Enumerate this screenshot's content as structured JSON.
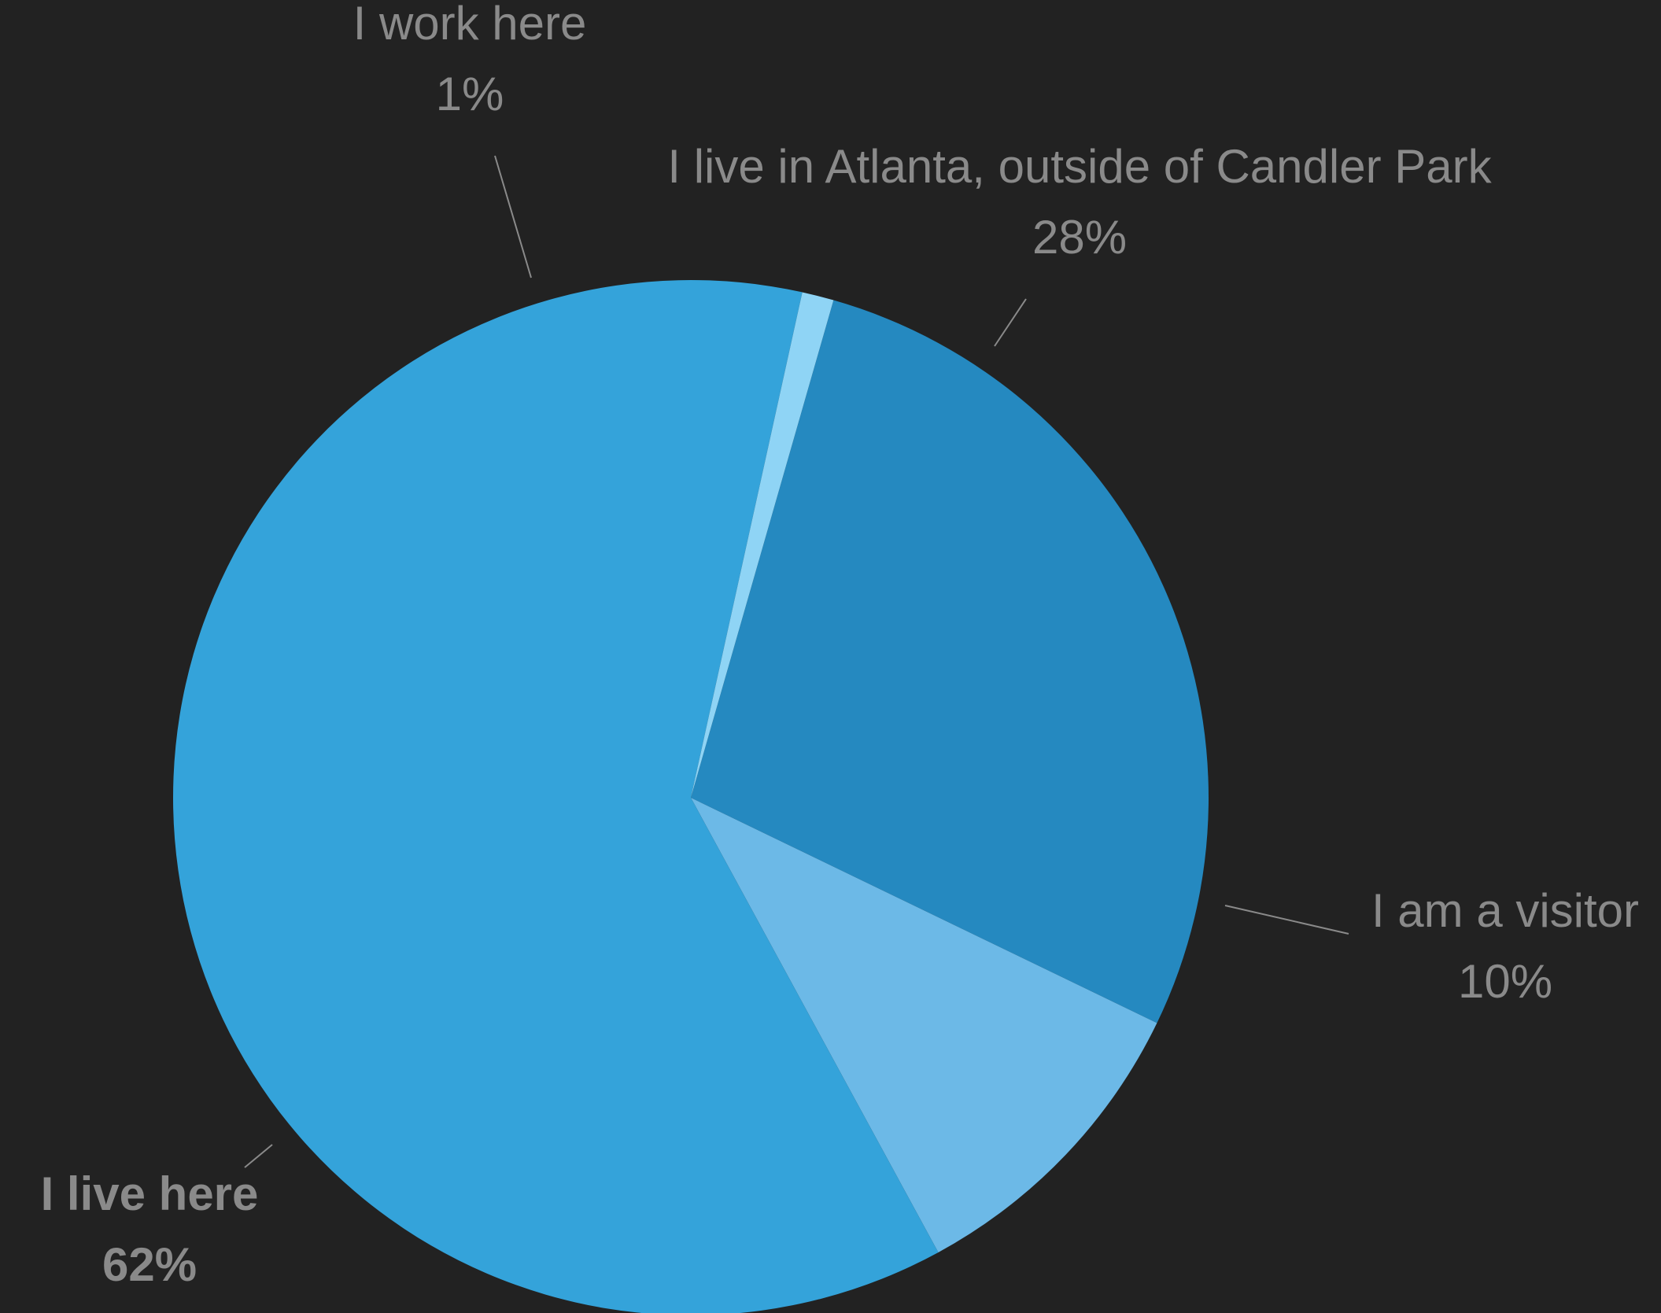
{
  "chart_data": {
    "type": "pie",
    "title": "",
    "slices": [
      {
        "label": "I live in Atlanta, outside of Candler Park",
        "value": 28,
        "percent_label": "28%",
        "color": "#2589C0"
      },
      {
        "label": "I am a visitor",
        "value": 10,
        "percent_label": "10%",
        "color": "#6CB9E7"
      },
      {
        "label": "I live here",
        "value": 62,
        "percent_label": "62%",
        "color": "#34A3DA",
        "emphasized": true
      },
      {
        "label": "I work here",
        "value": 1,
        "percent_label": "1%",
        "color": "#8FD4F5"
      }
    ],
    "label_color": "#8a8a8a",
    "background": "#222222",
    "legend": "none",
    "start_angle_deg": 16
  }
}
